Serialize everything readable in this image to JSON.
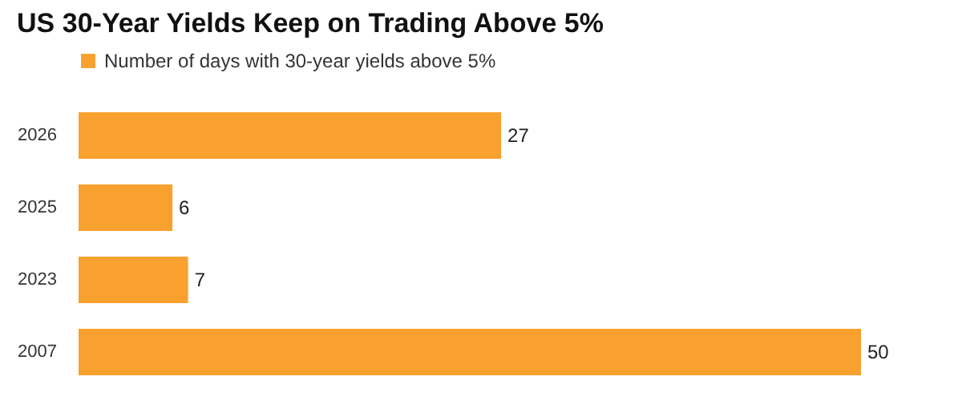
{
  "chart_data": {
    "type": "bar",
    "orientation": "horizontal",
    "title": "US 30-Year Yields Keep on Trading Above 5%",
    "categories": [
      "2026",
      "2025",
      "2023",
      "2007"
    ],
    "series": [
      {
        "name": "Number of days with 30-year yields above 5%",
        "color": "#f9a12e",
        "values": [
          27,
          6,
          7,
          50
        ]
      }
    ],
    "data_labels": true,
    "legend": "top left"
  }
}
